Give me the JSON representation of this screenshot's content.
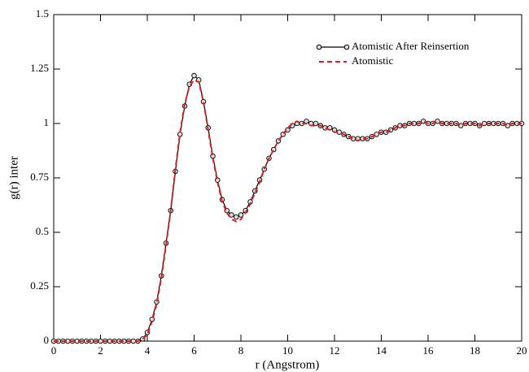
{
  "chart_data": {
    "type": "line",
    "x_label": "r (Angstrom)",
    "y_label": "g(r) inter",
    "x": [
      0,
      0.2,
      0.4,
      0.6,
      0.8,
      1,
      1.2,
      1.4,
      1.6,
      1.8,
      2,
      2.2,
      2.4,
      2.6,
      2.8,
      3,
      3.2,
      3.4,
      3.6,
      3.8,
      4,
      4.2,
      4.4,
      4.6,
      4.8,
      5,
      5.2,
      5.4,
      5.6,
      5.8,
      6,
      6.2,
      6.4,
      6.6,
      6.8,
      7,
      7.2,
      7.4,
      7.6,
      7.8,
      8,
      8.2,
      8.4,
      8.6,
      8.8,
      9,
      9.2,
      9.4,
      9.6,
      9.8,
      10,
      10.2,
      10.4,
      10.6,
      10.8,
      11,
      11.2,
      11.4,
      11.6,
      11.8,
      12,
      12.2,
      12.4,
      12.6,
      12.8,
      13,
      13.2,
      13.4,
      13.6,
      13.8,
      14,
      14.2,
      14.4,
      14.6,
      14.8,
      15,
      15.2,
      15.4,
      15.6,
      15.8,
      16,
      16.2,
      16.4,
      16.6,
      16.8,
      17,
      17.2,
      17.4,
      17.6,
      17.8,
      18,
      18.2,
      18.4,
      18.6,
      18.8,
      19,
      19.2,
      19.4,
      19.6,
      19.8,
      20
    ],
    "series": [
      {
        "name": "Atomistic After Reinsertion",
        "color": "#000000",
        "marker": "circle",
        "line_style": "solid",
        "values": [
          0,
          0,
          0,
          0,
          0,
          0,
          0,
          0,
          0,
          0,
          0,
          0,
          0,
          0,
          0,
          0,
          0,
          0,
          0,
          0.01,
          0.04,
          0.1,
          0.18,
          0.3,
          0.45,
          0.6,
          0.78,
          0.95,
          1.08,
          1.18,
          1.22,
          1.2,
          1.1,
          0.98,
          0.85,
          0.74,
          0.65,
          0.6,
          0.58,
          0.57,
          0.58,
          0.6,
          0.64,
          0.69,
          0.74,
          0.79,
          0.84,
          0.88,
          0.92,
          0.95,
          0.97,
          0.99,
          1.0,
          1.0,
          1.01,
          1.0,
          1.0,
          0.99,
          0.98,
          0.98,
          0.97,
          0.96,
          0.95,
          0.94,
          0.93,
          0.93,
          0.93,
          0.93,
          0.94,
          0.95,
          0.96,
          0.96,
          0.97,
          0.98,
          0.99,
          0.99,
          1.0,
          1.0,
          1.0,
          1.01,
          1.0,
          1.0,
          1.01,
          1.0,
          1.0,
          1.0,
          1.0,
          0.99,
          1.0,
          1.0,
          1.0,
          0.99,
          1.0,
          1.0,
          1.0,
          1.0,
          1.0,
          0.99,
          1.0,
          1.0,
          1.0
        ]
      },
      {
        "name": "Atomistic",
        "color": "#e02020",
        "marker": "none",
        "line_style": "dashed",
        "values": [
          0,
          0,
          0,
          0,
          0,
          0,
          0,
          0,
          0,
          0,
          0,
          0,
          0,
          0,
          0,
          0,
          0,
          0,
          0,
          0.01,
          0.03,
          0.09,
          0.17,
          0.29,
          0.44,
          0.6,
          0.79,
          0.96,
          1.09,
          1.17,
          1.2,
          1.19,
          1.1,
          0.97,
          0.84,
          0.73,
          0.64,
          0.59,
          0.56,
          0.55,
          0.56,
          0.59,
          0.63,
          0.68,
          0.73,
          0.79,
          0.84,
          0.88,
          0.92,
          0.95,
          0.98,
          1.0,
          1.01,
          1.0,
          1.0,
          0.99,
          0.99,
          0.99,
          0.98,
          0.97,
          0.96,
          0.96,
          0.95,
          0.94,
          0.93,
          0.92,
          0.93,
          0.93,
          0.94,
          0.95,
          0.96,
          0.96,
          0.97,
          0.98,
          0.99,
          0.99,
          1.0,
          1.0,
          1.0,
          1.01,
          1.0,
          1.0,
          1.01,
          1.0,
          1.0,
          1.0,
          1.0,
          0.99,
          1.0,
          1.0,
          1.0,
          0.99,
          1.0,
          1.0,
          1.0,
          1.0,
          1.0,
          0.99,
          1.0,
          1.0,
          1.0
        ]
      }
    ],
    "xlim": [
      0,
      20
    ],
    "xticks": [
      0,
      2,
      4,
      6,
      8,
      10,
      12,
      14,
      16,
      18,
      20
    ],
    "ylim": [
      0,
      1.5
    ],
    "yticks": [
      0,
      0.25,
      0.5,
      0.75,
      1,
      1.25,
      1.5
    ],
    "legend": "upper right"
  }
}
